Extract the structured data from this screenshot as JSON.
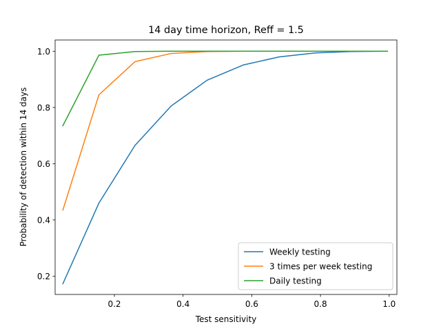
{
  "chart_data": {
    "type": "line",
    "title": "14 day time horizon, Reff = 1.5",
    "xlabel": "Test sensitivity",
    "ylabel": "Probability of detection within 14 days",
    "xlim": [
      0.0275,
      1.0225
    ],
    "ylim": [
      0.135,
      1.04
    ],
    "xticks": [
      0.2,
      0.4,
      0.6,
      0.8,
      1.0
    ],
    "xtick_labels": [
      "0.2",
      "0.4",
      "0.6",
      "0.8",
      "1.0"
    ],
    "yticks": [
      0.2,
      0.4,
      0.6,
      0.8,
      1.0
    ],
    "ytick_labels": [
      "0.2",
      "0.4",
      "0.6",
      "0.8",
      "1.0"
    ],
    "grid": false,
    "legend_position": "lower-right",
    "x": [
      0.05,
      0.155,
      0.26,
      0.365,
      0.47,
      0.575,
      0.68,
      0.785,
      0.89,
      0.995
    ],
    "series": [
      {
        "name": "Weekly testing",
        "color": "#1f77b4",
        "values": [
          0.173,
          0.46,
          0.665,
          0.805,
          0.897,
          0.951,
          0.98,
          0.994,
          0.999,
          1.0
        ]
      },
      {
        "name": "3 times per week testing",
        "color": "#ff7f0e",
        "values": [
          0.435,
          0.845,
          0.963,
          0.992,
          0.999,
          1.0,
          1.0,
          1.0,
          1.0,
          1.0
        ]
      },
      {
        "name": "Daily testing",
        "color": "#2ca02c",
        "values": [
          0.735,
          0.986,
          0.999,
          1.0,
          1.0,
          1.0,
          1.0,
          1.0,
          1.0,
          1.0
        ]
      }
    ]
  }
}
